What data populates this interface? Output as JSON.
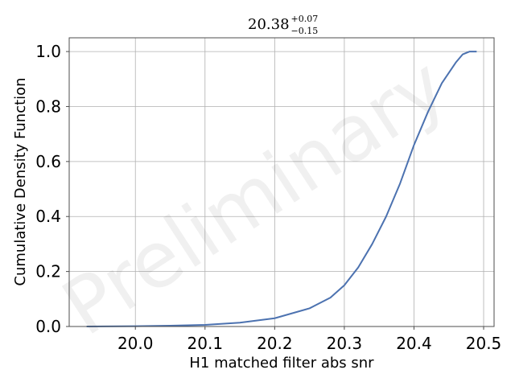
{
  "chart_data": {
    "type": "line",
    "title": {
      "main": "20.38",
      "upper": "+0.07",
      "lower": "−0.15"
    },
    "xlabel": "H1 matched filter abs snr",
    "ylabel": "Cumulative Density Function",
    "xlim": [
      19.905,
      20.515
    ],
    "ylim": [
      0.0,
      1.05
    ],
    "xticks": [
      20.0,
      20.1,
      20.2,
      20.3,
      20.4,
      20.5
    ],
    "xtick_labels": [
      "20.0",
      "20.1",
      "20.2",
      "20.3",
      "20.4",
      "20.5"
    ],
    "yticks": [
      0.0,
      0.2,
      0.4,
      0.6,
      0.8,
      1.0
    ],
    "ytick_labels": [
      "0.0",
      "0.2",
      "0.4",
      "0.6",
      "0.8",
      "1.0"
    ],
    "grid": true,
    "watermark": "Preliminary",
    "series": [
      {
        "color": "#4c72b0",
        "x": [
          19.93,
          20.0,
          20.05,
          20.1,
          20.15,
          20.2,
          20.25,
          20.28,
          20.3,
          20.32,
          20.34,
          20.36,
          20.38,
          20.4,
          20.42,
          20.44,
          20.46,
          20.47,
          20.48,
          20.49
        ],
        "y": [
          0.0,
          0.001,
          0.003,
          0.006,
          0.014,
          0.03,
          0.066,
          0.105,
          0.15,
          0.215,
          0.3,
          0.4,
          0.52,
          0.66,
          0.78,
          0.885,
          0.96,
          0.99,
          1.0,
          1.0
        ]
      }
    ]
  }
}
